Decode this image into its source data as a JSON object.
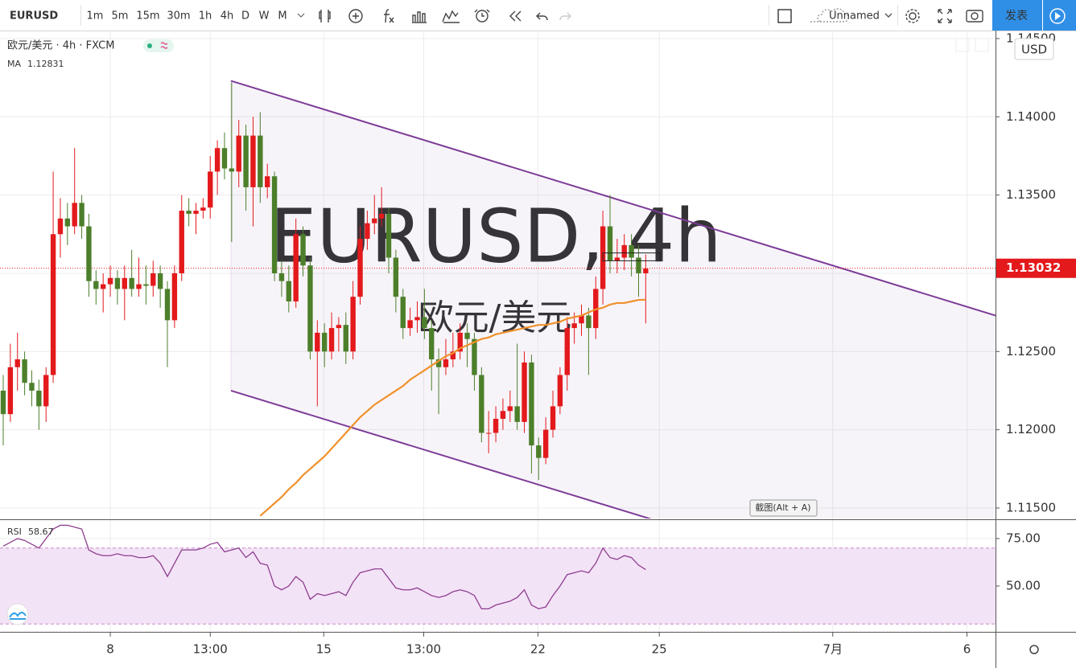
{
  "toolbar": {
    "symbol": "EURUSD",
    "intervals": [
      "1m",
      "5m",
      "15m",
      "30m",
      "1h",
      "4h",
      "D",
      "W",
      "M"
    ],
    "active_interval": 5,
    "layout_name": "Unnamed",
    "publish": "发表"
  },
  "tooltip": "截图(Alt + A)",
  "chart_data": {
    "type": "candlestick",
    "legend_title": "欧元/美元 · 4h · FXCM",
    "watermark": "EURUSD, 4h",
    "watermark_sub": "欧元/美元",
    "currency": "USD",
    "up_color": "#e3191c",
    "down_color": "#4d7f2b",
    "candles": [
      [
        1.1225,
        1.1235,
        1.119,
        1.121
      ],
      [
        1.121,
        1.1255,
        1.1205,
        1.124
      ],
      [
        1.124,
        1.1262,
        1.1225,
        1.1245
      ],
      [
        1.1245,
        1.125,
        1.1222,
        1.123
      ],
      [
        1.123,
        1.1238,
        1.1215,
        1.1225
      ],
      [
        1.1225,
        1.1232,
        1.12,
        1.1215
      ],
      [
        1.1215,
        1.124,
        1.1205,
        1.1235
      ],
      [
        1.1235,
        1.1365,
        1.123,
        1.1325
      ],
      [
        1.1325,
        1.1348,
        1.131,
        1.1335
      ],
      [
        1.1335,
        1.1345,
        1.1318,
        1.133
      ],
      [
        1.133,
        1.138,
        1.1325,
        1.1345
      ],
      [
        1.1345,
        1.135,
        1.1322,
        1.133
      ],
      [
        1.133,
        1.1338,
        1.1285,
        1.1295
      ],
      [
        1.1295,
        1.1302,
        1.128,
        1.129
      ],
      [
        1.129,
        1.13,
        1.1275,
        1.1293
      ],
      [
        1.1293,
        1.1305,
        1.1285,
        1.1297
      ],
      [
        1.1297,
        1.1302,
        1.128,
        1.129
      ],
      [
        1.129,
        1.1305,
        1.127,
        1.1297
      ],
      [
        1.1297,
        1.1315,
        1.1285,
        1.129
      ],
      [
        1.129,
        1.131,
        1.1285,
        1.1293
      ],
      [
        1.1293,
        1.1305,
        1.128,
        1.1292
      ],
      [
        1.1292,
        1.1308,
        1.1285,
        1.13
      ],
      [
        1.13,
        1.1305,
        1.1278,
        1.129
      ],
      [
        1.129,
        1.1295,
        1.124,
        1.127
      ],
      [
        1.127,
        1.1305,
        1.1265,
        1.13
      ],
      [
        1.13,
        1.135,
        1.1295,
        1.134
      ],
      [
        1.134,
        1.1348,
        1.133,
        1.1338
      ],
      [
        1.1338,
        1.1345,
        1.1325,
        1.134
      ],
      [
        1.134,
        1.1348,
        1.1335,
        1.1342
      ],
      [
        1.1342,
        1.1375,
        1.1335,
        1.1365
      ],
      [
        1.1365,
        1.1385,
        1.135,
        1.138
      ],
      [
        1.138,
        1.139,
        1.136,
        1.1367
      ],
      [
        1.1367,
        1.1422,
        1.132,
        1.1365
      ],
      [
        1.1365,
        1.1398,
        1.1355,
        1.1388
      ],
      [
        1.1388,
        1.1395,
        1.134,
        1.1355
      ],
      [
        1.1355,
        1.14,
        1.133,
        1.1388
      ],
      [
        1.1388,
        1.1403,
        1.1345,
        1.1355
      ],
      [
        1.1355,
        1.137,
        1.1348,
        1.1362
      ],
      [
        1.1362,
        1.1365,
        1.1295,
        1.13
      ],
      [
        1.13,
        1.1308,
        1.1285,
        1.1295
      ],
      [
        1.1295,
        1.1305,
        1.1275,
        1.1282
      ],
      [
        1.1282,
        1.1335,
        1.1278,
        1.1325
      ],
      [
        1.1325,
        1.133,
        1.1298,
        1.1305
      ],
      [
        1.1305,
        1.131,
        1.1245,
        1.125
      ],
      [
        1.125,
        1.127,
        1.1215,
        1.1262
      ],
      [
        1.1262,
        1.1268,
        1.124,
        1.125
      ],
      [
        1.125,
        1.1275,
        1.1245,
        1.1265
      ],
      [
        1.1265,
        1.1272,
        1.125,
        1.1267
      ],
      [
        1.1267,
        1.1275,
        1.1242,
        1.125
      ],
      [
        1.125,
        1.1295,
        1.1245,
        1.1285
      ],
      [
        1.1285,
        1.133,
        1.128,
        1.1322
      ],
      [
        1.1322,
        1.134,
        1.1315,
        1.1332
      ],
      [
        1.1332,
        1.135,
        1.1325,
        1.1335
      ],
      [
        1.1335,
        1.1355,
        1.133,
        1.1338
      ],
      [
        1.1338,
        1.1342,
        1.13,
        1.131
      ],
      [
        1.131,
        1.1315,
        1.1275,
        1.1285
      ],
      [
        1.1285,
        1.129,
        1.1258,
        1.1265
      ],
      [
        1.1265,
        1.1278,
        1.126,
        1.127
      ],
      [
        1.127,
        1.1282,
        1.1262,
        1.1272
      ],
      [
        1.1272,
        1.129,
        1.1258,
        1.1265
      ],
      [
        1.1265,
        1.127,
        1.1225,
        1.1245
      ],
      [
        1.1245,
        1.1252,
        1.121,
        1.124
      ],
      [
        1.124,
        1.1258,
        1.1235,
        1.1245
      ],
      [
        1.1245,
        1.1262,
        1.124,
        1.125
      ],
      [
        1.125,
        1.1268,
        1.1245,
        1.1262
      ],
      [
        1.1262,
        1.1268,
        1.124,
        1.1258
      ],
      [
        1.1258,
        1.1262,
        1.1225,
        1.1235
      ],
      [
        1.1235,
        1.124,
        1.1192,
        1.1198
      ],
      [
        1.1198,
        1.1212,
        1.1185,
        1.1198
      ],
      [
        1.1198,
        1.1215,
        1.1192,
        1.1207
      ],
      [
        1.1207,
        1.122,
        1.12,
        1.1212
      ],
      [
        1.1212,
        1.1225,
        1.1205,
        1.1215
      ],
      [
        1.1215,
        1.1255,
        1.12,
        1.1205
      ],
      [
        1.1205,
        1.125,
        1.1198,
        1.1243
      ],
      [
        1.1243,
        1.1248,
        1.1172,
        1.119
      ],
      [
        1.119,
        1.1195,
        1.1168,
        1.1182
      ],
      [
        1.1182,
        1.1208,
        1.1178,
        1.12
      ],
      [
        1.12,
        1.1225,
        1.1195,
        1.1215
      ],
      [
        1.1215,
        1.124,
        1.121,
        1.1235
      ],
      [
        1.1235,
        1.1272,
        1.1225,
        1.1265
      ],
      [
        1.1265,
        1.1275,
        1.1255,
        1.1268
      ],
      [
        1.1268,
        1.128,
        1.126,
        1.1273
      ],
      [
        1.1273,
        1.1278,
        1.1235,
        1.1265
      ],
      [
        1.1265,
        1.1298,
        1.1258,
        1.129
      ],
      [
        1.129,
        1.134,
        1.128,
        1.133
      ],
      [
        1.133,
        1.135,
        1.13,
        1.1308
      ],
      [
        1.1308,
        1.1322,
        1.13,
        1.131
      ],
      [
        1.131,
        1.1325,
        1.1302,
        1.1318
      ],
      [
        1.1318,
        1.1325,
        1.1298,
        1.131
      ],
      [
        1.131,
        1.1318,
        1.1285,
        1.13
      ],
      [
        1.13,
        1.1312,
        1.1268,
        1.1303
      ]
    ],
    "ylim": [
      1.11433,
      1.14541
    ],
    "yticks": [
      {
        "value": 1.115,
        "label": "1.11500"
      },
      {
        "value": 1.12,
        "label": "1.12000"
      },
      {
        "value": 1.125,
        "label": "1.12500"
      },
      {
        "value": 1.13,
        "label": "1.13000"
      },
      {
        "value": 1.135,
        "label": "1.13500"
      },
      {
        "value": 1.14,
        "label": "1.14000"
      },
      {
        "value": 1.145,
        "label": "1.14500"
      }
    ],
    "xlim": [
      -0.45,
      139
    ],
    "xticks": [
      {
        "value": 15,
        "label": "8"
      },
      {
        "value": 29,
        "label": "13:00"
      },
      {
        "value": 44.9,
        "label": "15"
      },
      {
        "value": 58.9,
        "label": "13:00"
      },
      {
        "value": 74.9,
        "label": "22"
      },
      {
        "value": 91.9,
        "label": "25"
      },
      {
        "value": 116.2,
        "label": "7月"
      },
      {
        "value": 135,
        "label": "6"
      }
    ],
    "grid": true,
    "last_price": 1.13032,
    "ma": {
      "name": "MA",
      "last": 1.12831,
      "color": "#f0912c",
      "values": [
        null,
        null,
        null,
        null,
        null,
        null,
        null,
        null,
        null,
        null,
        null,
        null,
        null,
        null,
        null,
        null,
        null,
        null,
        null,
        null,
        null,
        null,
        null,
        null,
        null,
        null,
        null,
        null,
        null,
        null,
        null,
        null,
        null,
        null,
        null,
        null,
        1.1145,
        1.1149,
        1.1153,
        1.1157,
        1.1162,
        1.1166,
        1.1171,
        1.1175,
        1.1179,
        1.1183,
        1.1188,
        1.1193,
        1.1198,
        1.1203,
        1.1208,
        1.1212,
        1.1216,
        1.1219,
        1.1222,
        1.1225,
        1.1228,
        1.1232,
        1.1235,
        1.1238,
        1.1241,
        1.1244,
        1.1247,
        1.1249,
        1.1252,
        1.1254,
        1.1256,
        1.1258,
        1.1259,
        1.1261,
        1.1262,
        1.1263,
        1.1264,
        1.1265,
        1.1266,
        1.1267,
        1.1267,
        1.1268,
        1.1269,
        1.1271,
        1.1272,
        1.1273,
        1.1275,
        1.1277,
        1.1278,
        1.128,
        1.1281,
        1.1281,
        1.1282,
        1.1283,
        1.12831
      ]
    },
    "channel": {
      "color": "#7d3c98",
      "upper": [
        [
          31.9,
          1.1423
        ],
        [
          139,
          1.1273
        ]
      ],
      "lower": [
        [
          31.9,
          1.1225
        ],
        [
          91.4,
          1.1142
        ]
      ]
    },
    "rsi": {
      "name": "RSI",
      "last": 58.67,
      "color": "#8e3e8e",
      "band": [
        30,
        70
      ],
      "ylim": [
        26.3,
        84.3
      ],
      "yticks": [
        {
          "value": 50,
          "label": "50.00"
        },
        {
          "value": 75,
          "label": "75.00"
        }
      ],
      "values": [
        71,
        73,
        75,
        74,
        72,
        70,
        75,
        80,
        82,
        82,
        81,
        80,
        69,
        67,
        66,
        66,
        67,
        66,
        66,
        65,
        65,
        66,
        62,
        55,
        62,
        69,
        69,
        69,
        70,
        72,
        73,
        68,
        69,
        70,
        65,
        68,
        62,
        61,
        50,
        48,
        50,
        55,
        52,
        43,
        46,
        45,
        46,
        47,
        45,
        52,
        57,
        58,
        59,
        59,
        54,
        49,
        48,
        48,
        49,
        47,
        45,
        44,
        45,
        47,
        48,
        47,
        45,
        38,
        38,
        40,
        41,
        42,
        44,
        48,
        40,
        38,
        39,
        45,
        50,
        56,
        57,
        58,
        57,
        62,
        70,
        65,
        64,
        66,
        65,
        61,
        58.67
      ]
    }
  }
}
